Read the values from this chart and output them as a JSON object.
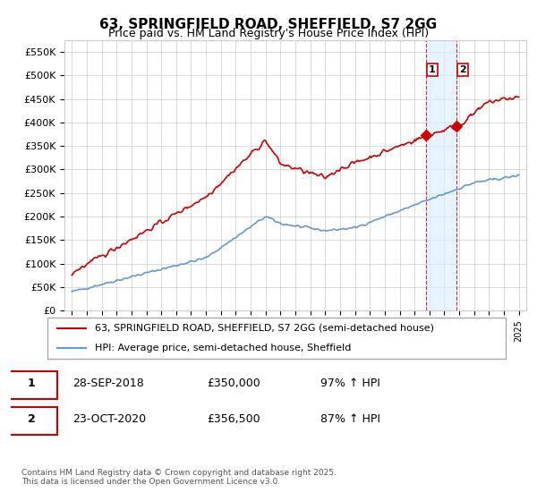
{
  "title": "63, SPRINGFIELD ROAD, SHEFFIELD, S7 2GG",
  "subtitle": "Price paid vs. HM Land Registry's House Price Index (HPI)",
  "hpi_label": "HPI: Average price, semi-detached house, Sheffield",
  "property_label": "63, SPRINGFIELD ROAD, SHEFFIELD, S7 2GG (semi-detached house)",
  "transaction1_label": "1",
  "transaction2_label": "2",
  "transaction1_date": "28-SEP-2018",
  "transaction1_price": "£350,000",
  "transaction1_hpi": "97% ↑ HPI",
  "transaction2_date": "23-OCT-2020",
  "transaction2_price": "£356,500",
  "transaction2_hpi": "87% ↑ HPI",
  "transaction1_year": 2018.75,
  "transaction2_year": 2020.8,
  "footer": "Contains HM Land Registry data © Crown copyright and database right 2025.\nThis data is licensed under the Open Government Licence v3.0.",
  "ylim": [
    0,
    575000
  ],
  "xlim": [
    1994.5,
    2025.5
  ],
  "red_color": "#cc0000",
  "blue_color": "#6699cc",
  "marker_color": "#cc0000",
  "vline_color": "#cc0000",
  "shade_color": "#ddeeff",
  "bg_color": "#ffffff",
  "grid_color": "#cccccc"
}
